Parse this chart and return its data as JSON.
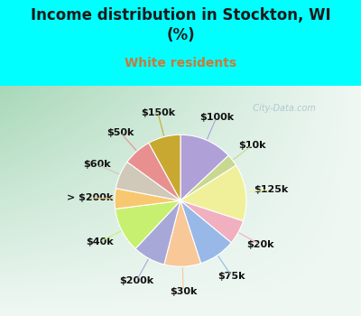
{
  "title": "Income distribution in Stockton, WI\n(%)",
  "subtitle": "White residents",
  "title_color": "#1a1a1a",
  "subtitle_color": "#c87a3a",
  "bg_top": "#00ffff",
  "bg_chart_gradient_left": "#b8e8c8",
  "bg_chart_gradient_right": "#e8f4f0",
  "labels": [
    "$100k",
    "$10k",
    "$125k",
    "$20k",
    "$75k",
    "$30k",
    "$200k",
    "$40k",
    "> $200k",
    "$60k",
    "$50k",
    "$150k"
  ],
  "values": [
    13,
    3,
    14,
    6,
    9,
    9,
    8,
    11,
    5,
    7,
    7,
    8
  ],
  "colors": [
    "#b0a0d8",
    "#c8d890",
    "#f0f09a",
    "#f0b0c0",
    "#98b8e8",
    "#f8c898",
    "#a8a8d8",
    "#c8f070",
    "#f8c870",
    "#d0c8b8",
    "#e89090",
    "#c8a830"
  ],
  "watermark": "  City-Data.com",
  "watermark_color": "#a8c0d0",
  "label_fontsize": 8,
  "title_fontsize": 12,
  "subtitle_fontsize": 10
}
